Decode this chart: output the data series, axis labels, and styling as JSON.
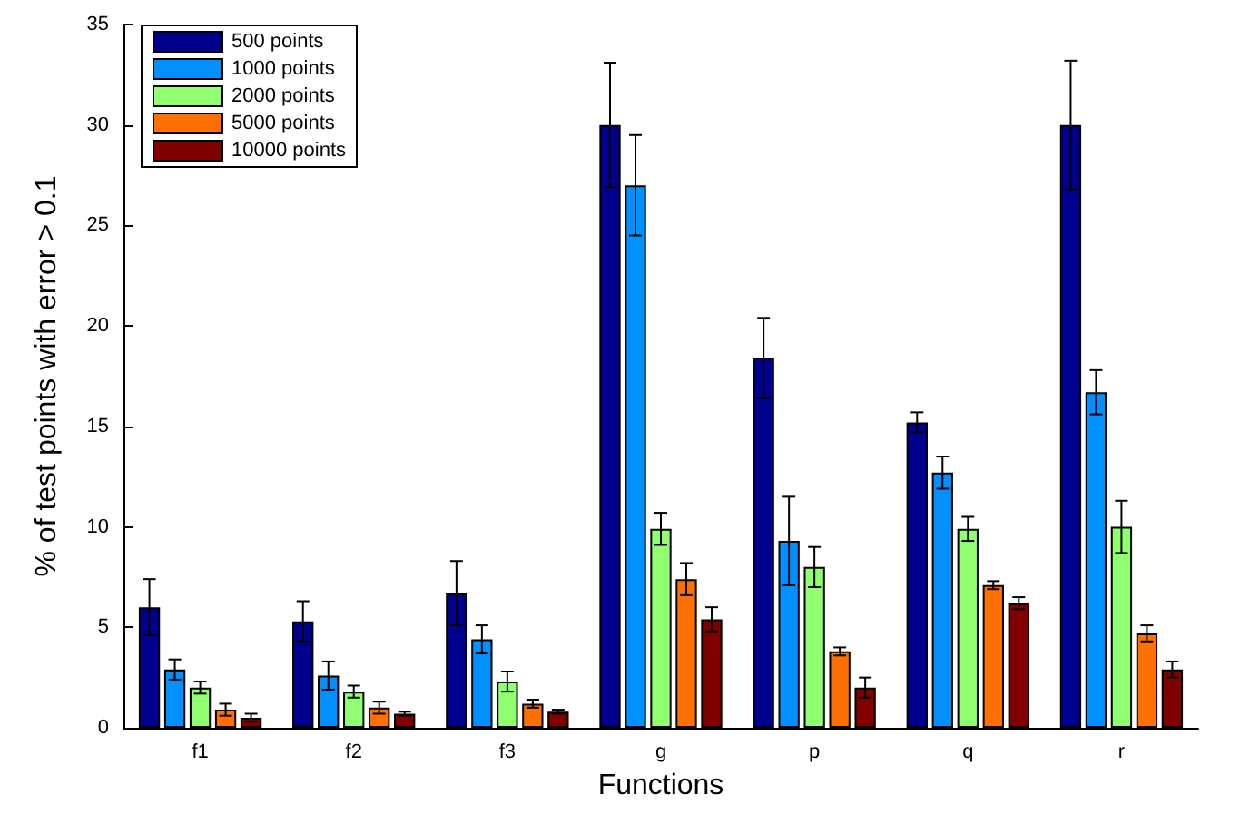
{
  "chart_data": {
    "type": "bar",
    "xlabel": "Functions",
    "ylabel": "% of test points with error > 0.1",
    "categories": [
      "f1",
      "f2",
      "f3",
      "g",
      "p",
      "q",
      "r"
    ],
    "series": [
      {
        "name": "500 points",
        "color": "#00008f",
        "values": [
          6.0,
          5.3,
          6.7,
          30.0,
          18.4,
          15.2,
          30.0
        ],
        "errors": [
          1.4,
          1.0,
          1.6,
          3.1,
          2.0,
          0.5,
          3.2
        ]
      },
      {
        "name": "1000 points",
        "color": "#0090ff",
        "values": [
          2.9,
          2.6,
          4.4,
          27.0,
          9.3,
          12.7,
          16.7
        ],
        "errors": [
          0.5,
          0.7,
          0.7,
          2.5,
          2.2,
          0.8,
          1.1
        ]
      },
      {
        "name": "2000 points",
        "color": "#90ff70",
        "values": [
          2.0,
          1.8,
          2.3,
          9.9,
          8.0,
          9.9,
          10.0
        ],
        "errors": [
          0.3,
          0.3,
          0.5,
          0.8,
          1.0,
          0.6,
          1.3
        ]
      },
      {
        "name": "5000 points",
        "color": "#ff7000",
        "values": [
          0.9,
          1.0,
          1.2,
          7.4,
          3.8,
          7.1,
          4.7
        ],
        "errors": [
          0.3,
          0.3,
          0.2,
          0.8,
          0.2,
          0.2,
          0.4
        ]
      },
      {
        "name": "10000 points",
        "color": "#800000",
        "values": [
          0.5,
          0.7,
          0.8,
          5.4,
          2.0,
          6.2,
          2.9
        ],
        "errors": [
          0.2,
          0.1,
          0.1,
          0.6,
          0.5,
          0.3,
          0.4
        ]
      }
    ],
    "ylim": [
      0,
      35
    ],
    "yticks": [
      0,
      5,
      10,
      15,
      20,
      25,
      30,
      35
    ],
    "grid": false,
    "legend": "top left"
  }
}
